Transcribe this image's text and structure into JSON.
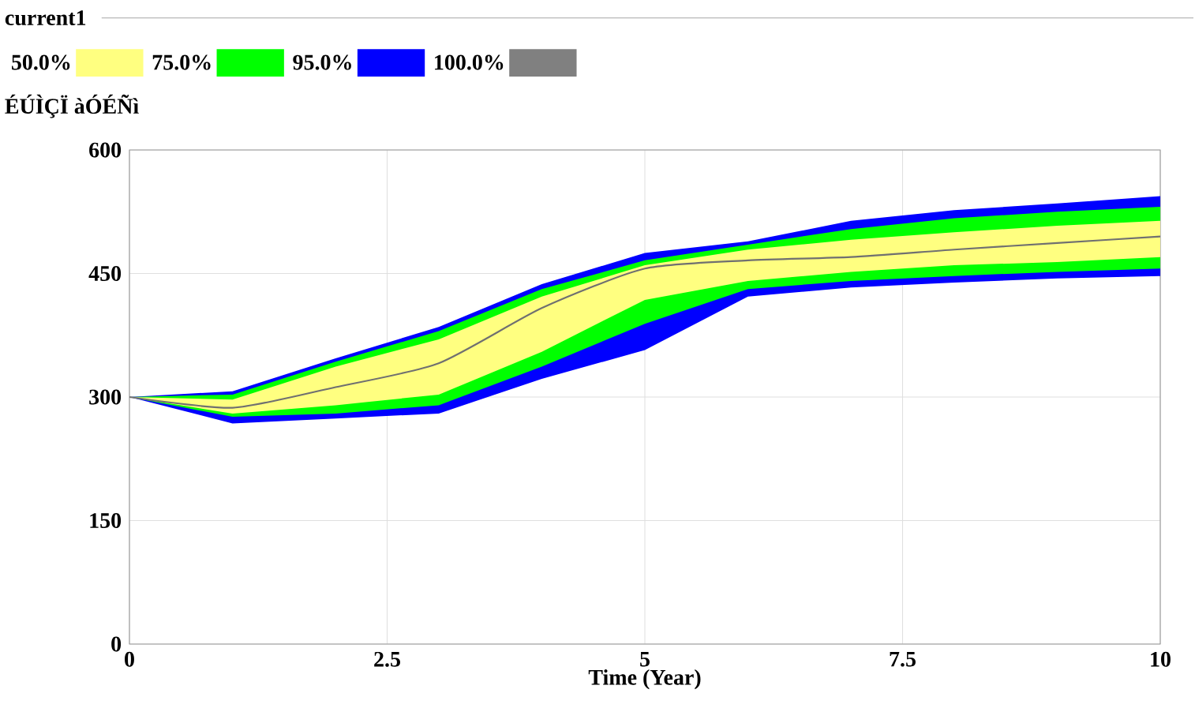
{
  "chart_data": {
    "type": "line",
    "title": "current1",
    "ylabel": "ÉÚÌÇÏ àÓÉÑì",
    "xlabel": "Time (Year)",
    "x": [
      0,
      1,
      2,
      3,
      4,
      5,
      6,
      7,
      8,
      9,
      10
    ],
    "series": [
      {
        "name": "50.0%",
        "color": "#ffff80",
        "values": [
          null,
          null,
          null,
          null,
          null,
          null,
          null,
          null,
          null,
          null,
          null
        ],
        "lower": [
          300,
          280,
          290,
          303,
          355,
          418,
          441,
          452,
          460,
          464,
          470
        ],
        "upper": [
          300,
          297,
          337,
          370,
          422,
          460,
          479,
          491,
          500,
          508,
          514
        ]
      },
      {
        "name": "75.0%",
        "color": "#00ff00",
        "values": [
          null,
          null,
          null,
          null,
          null,
          null,
          null,
          null,
          null,
          null,
          null
        ],
        "lower": [
          300,
          276,
          280,
          290,
          337,
          389,
          431,
          441,
          447,
          452,
          456
        ],
        "upper": [
          300,
          303,
          343,
          380,
          431,
          466,
          485,
          504,
          517,
          525,
          531
        ]
      },
      {
        "name": "95.0%",
        "color": "#0000ff",
        "values": [
          null,
          null,
          null,
          null,
          null,
          null,
          null,
          null,
          null,
          null,
          null
        ],
        "lower": [
          300,
          268,
          274,
          280,
          322,
          357,
          422,
          433,
          439,
          444,
          447
        ],
        "upper": [
          300,
          307,
          347,
          385,
          437,
          475,
          489,
          514,
          527,
          535,
          544
        ]
      },
      {
        "name": "100.0%",
        "color": "#808080",
        "values": [
          null,
          null,
          null,
          null,
          null,
          null,
          null,
          null,
          null,
          null,
          null
        ],
        "lower": [
          null,
          null,
          null,
          null,
          null,
          null,
          null,
          null,
          null,
          null,
          null
        ],
        "upper": [
          null,
          null,
          null,
          null,
          null,
          null,
          null,
          null,
          null,
          null,
          null
        ]
      },
      {
        "color": "#707070",
        "values": [
          300,
          287,
          312,
          341,
          408,
          456,
          466,
          470,
          479,
          487,
          495
        ]
      }
    ],
    "xlim": [
      0,
      10
    ],
    "xticks": [
      0,
      2.5,
      5,
      7.5,
      10
    ],
    "ylim": [
      0,
      600
    ],
    "yticks": [
      0,
      150,
      300,
      450,
      600
    ],
    "grid": true,
    "legend": "top left"
  }
}
